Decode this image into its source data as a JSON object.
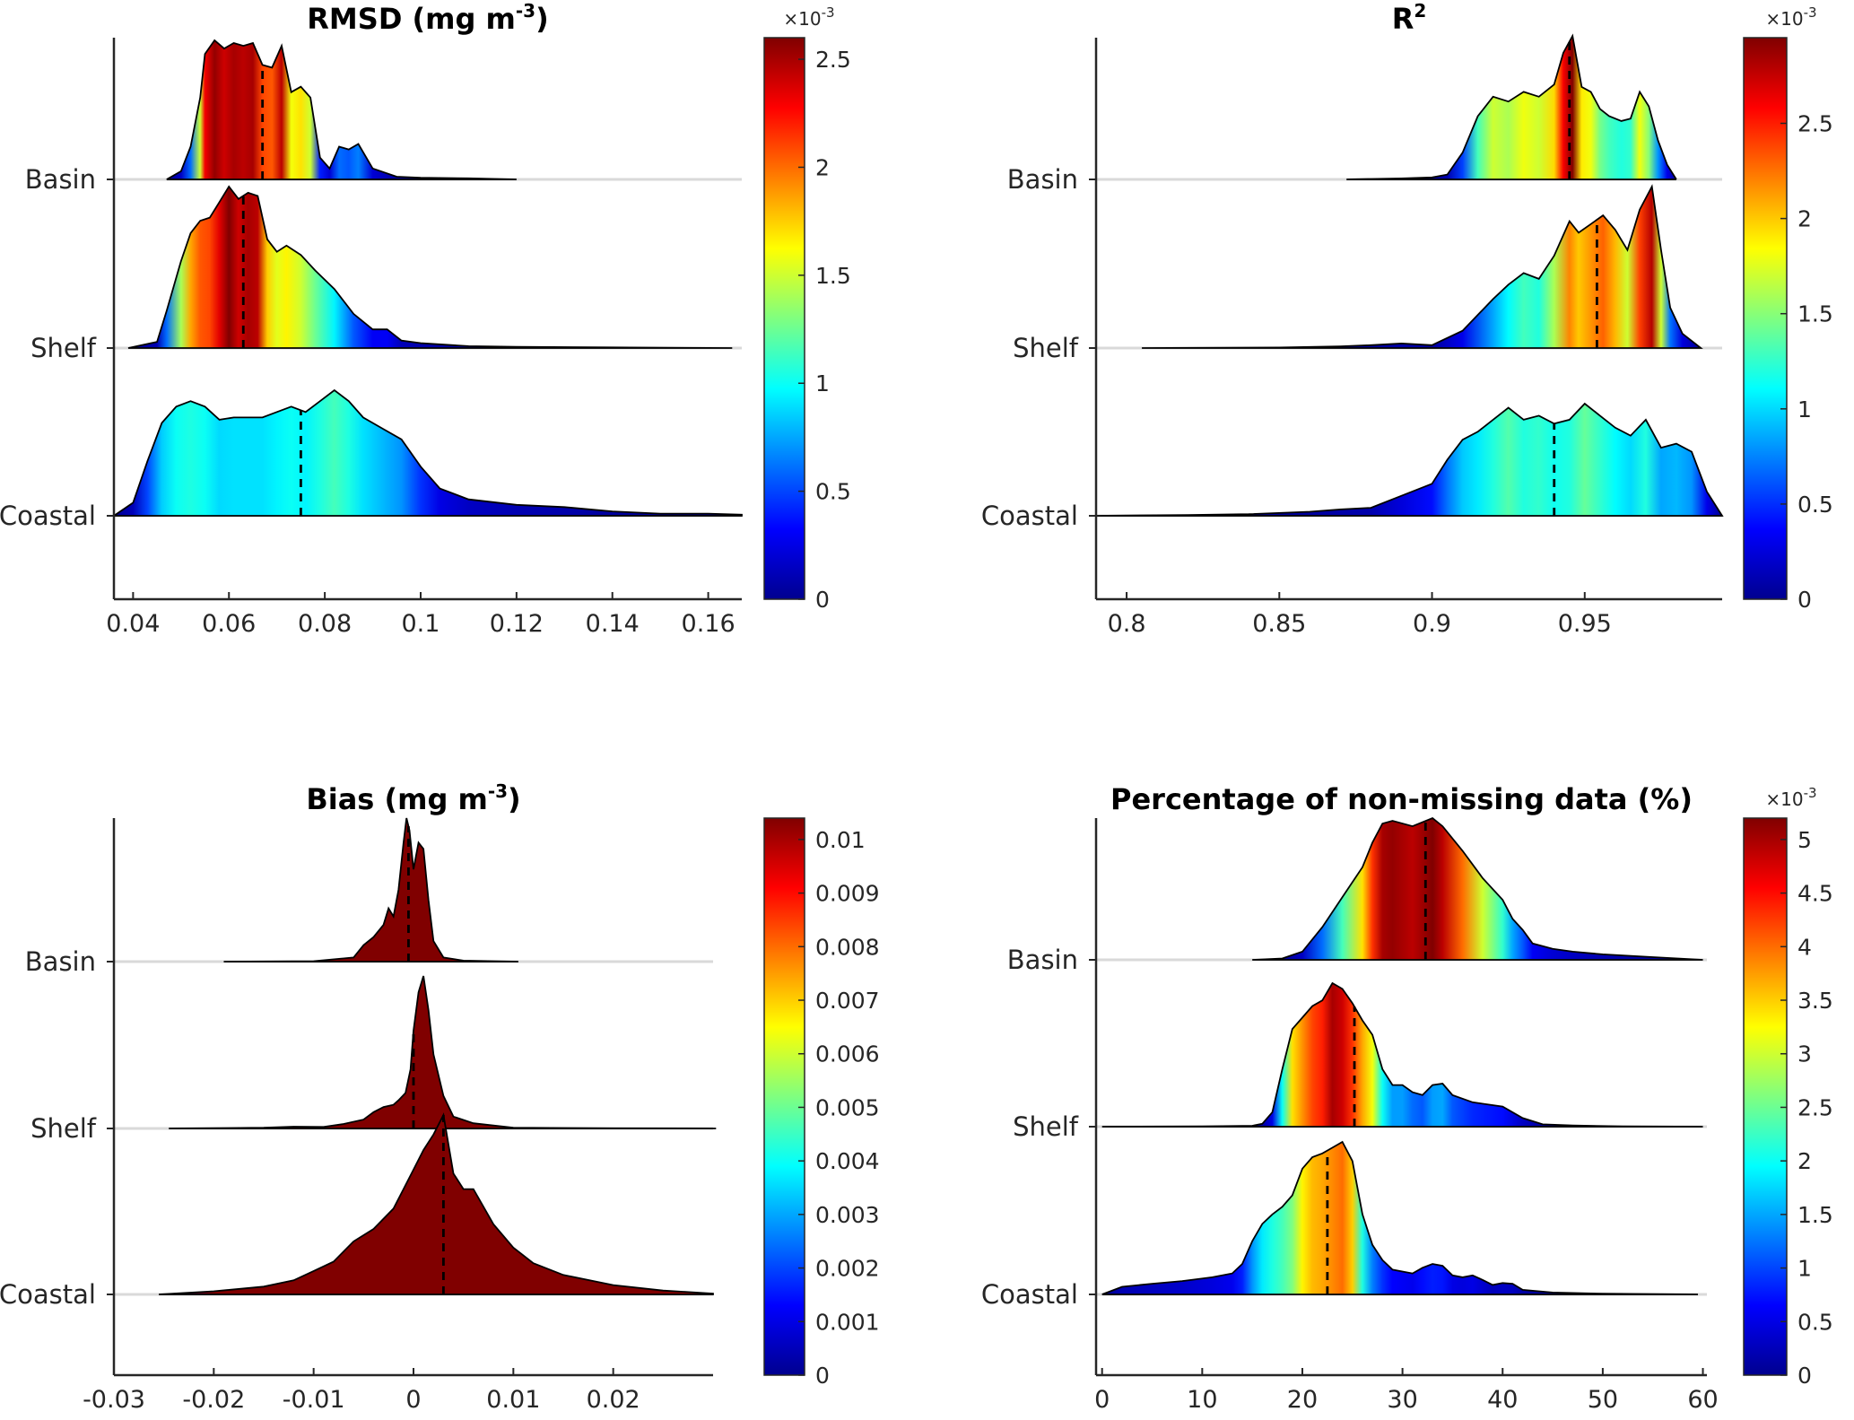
{
  "chart_data": [
    {
      "type": "area",
      "kind": "ridgeline-density",
      "title": "RMSD (mg m",
      "title_sup": "-3",
      "title_end": ")",
      "xlim": [
        0.036,
        0.167
      ],
      "xticks": [
        0.04,
        0.06,
        0.08,
        0.1,
        0.12,
        0.14,
        0.16
      ],
      "xtick_labels": [
        "0.04",
        "0.06",
        "0.08",
        "0.1",
        "0.12",
        "0.14",
        "0.16"
      ],
      "colorbar": {
        "min": 0,
        "max": 2.6,
        "ticks": [
          0,
          0.5,
          1,
          1.5,
          2,
          2.5
        ],
        "tick_labels": [
          "0",
          "0.5",
          "1",
          "1.5",
          "2",
          "2.5"
        ],
        "multiplier": "×10",
        "multiplier_exp": "-3"
      },
      "series": [
        {
          "name": "Basin",
          "x": [
            0.047,
            0.05,
            0.052,
            0.054,
            0.055,
            0.057,
            0.059,
            0.061,
            0.063,
            0.065,
            0.067,
            0.069,
            0.071,
            0.073,
            0.075,
            0.077,
            0.079,
            0.081,
            0.083,
            0.085,
            0.087,
            0.09,
            0.095,
            0.1,
            0.11,
            0.12
          ],
          "y": [
            0.0,
            0.15,
            0.6,
            1.5,
            2.3,
            2.55,
            2.4,
            2.5,
            2.45,
            2.5,
            2.1,
            2.05,
            2.45,
            1.6,
            1.7,
            1.5,
            0.4,
            0.2,
            0.6,
            0.55,
            0.65,
            0.2,
            0.05,
            0.03,
            0.02,
            0.0
          ],
          "median": 0.067
        },
        {
          "name": "Shelf",
          "x": [
            0.039,
            0.045,
            0.047,
            0.05,
            0.052,
            0.054,
            0.056,
            0.058,
            0.06,
            0.062,
            0.064,
            0.066,
            0.068,
            0.07,
            0.072,
            0.075,
            0.078,
            0.082,
            0.086,
            0.09,
            0.093,
            0.096,
            0.1,
            0.11,
            0.12,
            0.14,
            0.165
          ],
          "y": [
            0.0,
            0.1,
            0.6,
            1.4,
            1.85,
            2.05,
            2.1,
            2.35,
            2.6,
            2.4,
            2.5,
            2.45,
            1.75,
            1.55,
            1.65,
            1.5,
            1.25,
            0.95,
            0.55,
            0.3,
            0.3,
            0.12,
            0.08,
            0.03,
            0.02,
            0.01,
            0.0
          ],
          "median": 0.063
        },
        {
          "name": "Coastal",
          "x": [
            0.036,
            0.04,
            0.043,
            0.046,
            0.049,
            0.052,
            0.055,
            0.058,
            0.061,
            0.064,
            0.067,
            0.07,
            0.073,
            0.076,
            0.079,
            0.082,
            0.085,
            0.088,
            0.092,
            0.096,
            0.1,
            0.104,
            0.11,
            0.12,
            0.13,
            0.14,
            0.15,
            0.16,
            0.167
          ],
          "y": [
            0.0,
            0.12,
            0.5,
            0.85,
            1.0,
            1.05,
            1.0,
            0.88,
            0.9,
            0.9,
            0.9,
            0.95,
            1.0,
            0.95,
            1.05,
            1.15,
            1.05,
            0.9,
            0.8,
            0.7,
            0.45,
            0.25,
            0.15,
            0.1,
            0.08,
            0.04,
            0.02,
            0.02,
            0.01
          ],
          "median": 0.075
        }
      ]
    },
    {
      "type": "area",
      "kind": "ridgeline-density",
      "title": "R",
      "title_sup": "2",
      "title_end": "",
      "xlim": [
        0.79,
        0.995
      ],
      "xticks": [
        0.8,
        0.85,
        0.9,
        0.95
      ],
      "xtick_labels": [
        "0.8",
        "0.85",
        "0.9",
        "0.95"
      ],
      "colorbar": {
        "min": 0,
        "max": 2.95,
        "ticks": [
          0,
          0.5,
          1,
          1.5,
          2,
          2.5
        ],
        "tick_labels": [
          "0",
          "0.5",
          "1",
          "1.5",
          "2",
          "2.5"
        ],
        "multiplier": "×10",
        "multiplier_exp": "-3"
      },
      "series": [
        {
          "name": "Basin",
          "x": [
            0.872,
            0.88,
            0.89,
            0.9,
            0.905,
            0.91,
            0.915,
            0.92,
            0.925,
            0.93,
            0.935,
            0.94,
            0.943,
            0.946,
            0.949,
            0.952,
            0.955,
            0.958,
            0.962,
            0.965,
            0.968,
            0.971,
            0.974,
            0.977,
            0.98
          ],
          "y": [
            0.0,
            0.01,
            0.02,
            0.04,
            0.1,
            0.55,
            1.3,
            1.7,
            1.6,
            1.8,
            1.7,
            1.95,
            2.6,
            2.95,
            1.9,
            1.8,
            1.45,
            1.3,
            1.2,
            1.25,
            1.8,
            1.5,
            0.8,
            0.3,
            0.0
          ],
          "median": 0.945
        },
        {
          "name": "Shelf",
          "x": [
            0.805,
            0.85,
            0.87,
            0.88,
            0.89,
            0.9,
            0.91,
            0.92,
            0.925,
            0.93,
            0.935,
            0.94,
            0.945,
            0.948,
            0.952,
            0.956,
            0.96,
            0.964,
            0.968,
            0.972,
            0.975,
            0.978,
            0.982,
            0.988
          ],
          "y": [
            0.0,
            0.01,
            0.03,
            0.05,
            0.08,
            0.05,
            0.3,
            0.85,
            1.1,
            1.3,
            1.2,
            1.6,
            2.2,
            2.0,
            2.15,
            2.3,
            2.05,
            1.7,
            2.4,
            2.8,
            1.7,
            0.7,
            0.25,
            0.0
          ],
          "median": 0.954
        },
        {
          "name": "Coastal",
          "x": [
            0.79,
            0.82,
            0.84,
            0.86,
            0.87,
            0.88,
            0.89,
            0.9,
            0.905,
            0.91,
            0.915,
            0.92,
            0.925,
            0.93,
            0.935,
            0.94,
            0.945,
            0.95,
            0.955,
            0.96,
            0.965,
            0.97,
            0.975,
            0.98,
            0.985,
            0.99,
            0.995
          ],
          "y": [
            0.0,
            0.01,
            0.02,
            0.05,
            0.08,
            0.1,
            0.25,
            0.4,
            0.7,
            0.95,
            1.05,
            1.2,
            1.35,
            1.2,
            1.25,
            1.15,
            1.2,
            1.4,
            1.25,
            1.1,
            1.0,
            1.2,
            0.85,
            0.9,
            0.8,
            0.3,
            0.0
          ],
          "median": 0.94
        }
      ]
    },
    {
      "type": "area",
      "kind": "ridgeline-density",
      "title": "Bias (mg m",
      "title_sup": "-3",
      "title_end": ")",
      "xlim": [
        -0.03,
        0.03
      ],
      "xticks": [
        -0.03,
        -0.02,
        -0.01,
        0,
        0.01,
        0.02
      ],
      "xtick_labels": [
        "-0.03",
        "-0.02",
        "-0.01",
        "0",
        "0.01",
        "0.02"
      ],
      "colorbar": {
        "min": 0,
        "max": 0.0104,
        "ticks": [
          0,
          0.001,
          0.002,
          0.003,
          0.004,
          0.005,
          0.006,
          0.007,
          0.008,
          0.009,
          0.01
        ],
        "tick_labels": [
          "0",
          "0.001",
          "0.002",
          "0.003",
          "0.004",
          "0.005",
          "0.006",
          "0.007",
          "0.008",
          "0.009",
          "0.01"
        ]
      },
      "series": [
        {
          "name": "Basin",
          "x": [
            -0.019,
            -0.01,
            -0.006,
            -0.005,
            -0.004,
            -0.003,
            -0.0025,
            -0.002,
            -0.0015,
            -0.001,
            -0.0007,
            -0.0004,
            0.0,
            0.0005,
            0.001,
            0.0015,
            0.002,
            0.003,
            0.005,
            0.0105
          ],
          "y": [
            0.0,
            0.02,
            0.2,
            0.8,
            1.2,
            1.8,
            2.6,
            2.2,
            3.5,
            5.8,
            7.0,
            6.4,
            4.5,
            5.8,
            5.5,
            3.0,
            1.0,
            0.2,
            0.05,
            0.0
          ],
          "median": -0.0005
        },
        {
          "name": "Shelf",
          "x": [
            -0.0245,
            -0.015,
            -0.012,
            -0.009,
            -0.007,
            -0.005,
            -0.004,
            -0.003,
            -0.002,
            -0.0015,
            -0.0008,
            -0.0003,
            0.0,
            0.0005,
            0.001,
            0.0015,
            0.002,
            0.003,
            0.004,
            0.006,
            0.01,
            0.02,
            0.0303
          ],
          "y": [
            0.0,
            0.05,
            0.12,
            0.1,
            0.3,
            0.6,
            1.1,
            1.45,
            1.6,
            1.9,
            2.4,
            4.0,
            6.6,
            9.2,
            10.3,
            8.0,
            5.0,
            2.2,
            0.8,
            0.35,
            0.05,
            0.01,
            0.0
          ],
          "median": 0.0
        },
        {
          "name": "Coastal",
          "x": [
            -0.0255,
            -0.02,
            -0.015,
            -0.012,
            -0.01,
            -0.008,
            -0.006,
            -0.004,
            -0.002,
            -0.001,
            0.0,
            0.001,
            0.002,
            0.003,
            0.004,
            0.005,
            0.006,
            0.008,
            0.01,
            0.012,
            0.015,
            0.02,
            0.025,
            0.03
          ],
          "y": [
            0.0,
            0.04,
            0.1,
            0.18,
            0.3,
            0.42,
            0.68,
            0.84,
            1.1,
            1.35,
            1.6,
            1.85,
            2.05,
            2.3,
            1.55,
            1.35,
            1.35,
            0.9,
            0.6,
            0.4,
            0.25,
            0.12,
            0.05,
            0.01
          ],
          "median": 0.003
        }
      ]
    },
    {
      "type": "area",
      "kind": "ridgeline-density",
      "title": "Percentage of non-missing data (%)",
      "title_sup": "",
      "title_end": "",
      "xlim": [
        -0.6,
        60.4
      ],
      "xticks": [
        0,
        10,
        20,
        30,
        40,
        50,
        60
      ],
      "xtick_labels": [
        "0",
        "10",
        "20",
        "30",
        "40",
        "50",
        "60"
      ],
      "colorbar": {
        "min": 0,
        "max": 5.2,
        "ticks": [
          0,
          0.5,
          1,
          1.5,
          2,
          2.5,
          3,
          3.5,
          4,
          4.5,
          5
        ],
        "tick_labels": [
          "0",
          "0.5",
          "1",
          "1.5",
          "2",
          "2.5",
          "3",
          "3.5",
          "4",
          "4.5",
          "5"
        ],
        "multiplier": "×10",
        "multiplier_exp": "-3"
      },
      "series": [
        {
          "name": "Basin",
          "x": [
            15,
            18,
            20,
            22,
            24,
            26,
            27,
            28,
            29,
            31,
            33,
            34,
            36,
            38,
            40,
            41,
            42,
            43,
            45,
            47,
            50,
            55,
            60
          ],
          "y": [
            0.0,
            0.05,
            0.3,
            1.2,
            2.3,
            3.4,
            4.3,
            5.0,
            5.1,
            4.9,
            5.2,
            4.9,
            4.0,
            3.0,
            2.2,
            1.5,
            1.1,
            0.6,
            0.4,
            0.3,
            0.2,
            0.1,
            0.0
          ],
          "median": 32.3
        },
        {
          "name": "Shelf",
          "x": [
            0,
            10,
            15,
            16,
            17,
            18,
            19,
            20,
            21,
            22,
            23,
            24,
            25,
            26,
            27,
            28,
            29,
            30,
            31,
            32,
            33,
            34,
            35,
            37,
            40,
            42,
            44,
            47,
            52,
            60
          ],
          "y": [
            0.0,
            0.01,
            0.03,
            0.1,
            0.5,
            2.0,
            3.4,
            3.8,
            4.2,
            4.4,
            5.0,
            4.8,
            4.3,
            3.7,
            3.2,
            2.0,
            1.45,
            1.45,
            1.2,
            1.1,
            1.45,
            1.5,
            1.1,
            0.85,
            0.7,
            0.3,
            0.08,
            0.04,
            0.01,
            0.0
          ],
          "median": 25.2
        },
        {
          "name": "Coastal",
          "x": [
            0,
            2,
            5,
            8,
            11,
            13,
            14,
            15,
            16,
            17,
            18,
            19,
            20,
            21,
            22,
            23,
            24,
            25,
            26,
            27,
            28,
            29,
            30,
            31,
            32,
            33,
            34,
            35,
            36,
            37,
            38,
            39,
            40,
            41,
            42,
            45,
            50,
            59.5
          ],
          "y": [
            0.0,
            0.2,
            0.28,
            0.35,
            0.45,
            0.55,
            0.8,
            1.4,
            1.85,
            2.1,
            2.3,
            2.6,
            3.3,
            3.6,
            3.7,
            3.85,
            4.0,
            3.5,
            2.1,
            1.3,
            0.9,
            0.65,
            0.6,
            0.55,
            0.7,
            0.8,
            0.75,
            0.5,
            0.45,
            0.5,
            0.38,
            0.25,
            0.3,
            0.28,
            0.12,
            0.05,
            0.02,
            0.0
          ],
          "median": 22.5
        }
      ]
    }
  ]
}
